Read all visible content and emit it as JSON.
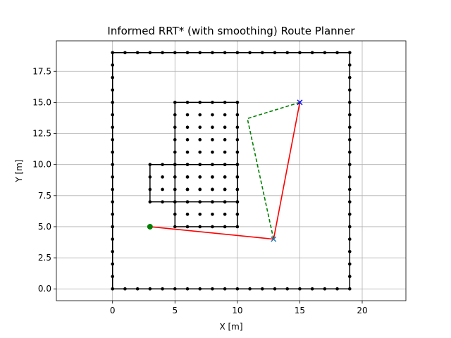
{
  "chart_data": {
    "type": "scatter",
    "title": "Informed RRT* (with smoothing) Route Planner",
    "xlabel": "X [m]",
    "ylabel": "Y [m]",
    "xlim": [
      -4.5,
      23.5
    ],
    "ylim": [
      -0.95,
      19.95
    ],
    "x_ticks": [
      0,
      5,
      10,
      15,
      20
    ],
    "x_tick_labels": [
      "0",
      "5",
      "10",
      "15",
      "20"
    ],
    "y_ticks": [
      0.0,
      2.5,
      5.0,
      7.5,
      10.0,
      12.5,
      15.0,
      17.5
    ],
    "y_tick_labels": [
      "0.0",
      "2.5",
      "5.0",
      "7.5",
      "10.0",
      "12.5",
      "15.0",
      "17.5"
    ],
    "grid": true,
    "colors": {
      "obstacle": "#000000",
      "grid": "#b0b0b0",
      "raw_path": "#008000",
      "smoothed_path": "#ff0000",
      "start": "#008000",
      "goal_marker": "#0000ff",
      "waypoint_marker": "#1f77b4"
    },
    "series": [
      {
        "role": "boundary",
        "style": "solid-with-dots",
        "rects": [
          [
            0,
            0,
            19,
            19
          ]
        ],
        "dot_step": 1
      },
      {
        "role": "obstacle",
        "style": "solid-with-dots",
        "rects": [
          [
            5,
            5,
            10,
            15
          ],
          [
            3,
            7,
            10,
            10
          ]
        ],
        "dot_step": 1
      },
      {
        "role": "raw_path",
        "style": "dashed",
        "x": [
          15.0,
          10.8,
          12.9
        ],
        "y": [
          15.0,
          13.7,
          4.0
        ]
      },
      {
        "role": "smoothed_path",
        "style": "solid",
        "x": [
          3.0,
          12.9,
          15.0
        ],
        "y": [
          5.0,
          4.0,
          15.0
        ]
      },
      {
        "role": "start",
        "marker": "circle",
        "x": [
          3.0
        ],
        "y": [
          5.0
        ]
      },
      {
        "role": "goal",
        "marker": "x",
        "x": [
          15.0
        ],
        "y": [
          15.0
        ]
      },
      {
        "role": "waypoint",
        "marker": "x",
        "x": [
          12.9
        ],
        "y": [
          4.0
        ]
      }
    ]
  }
}
